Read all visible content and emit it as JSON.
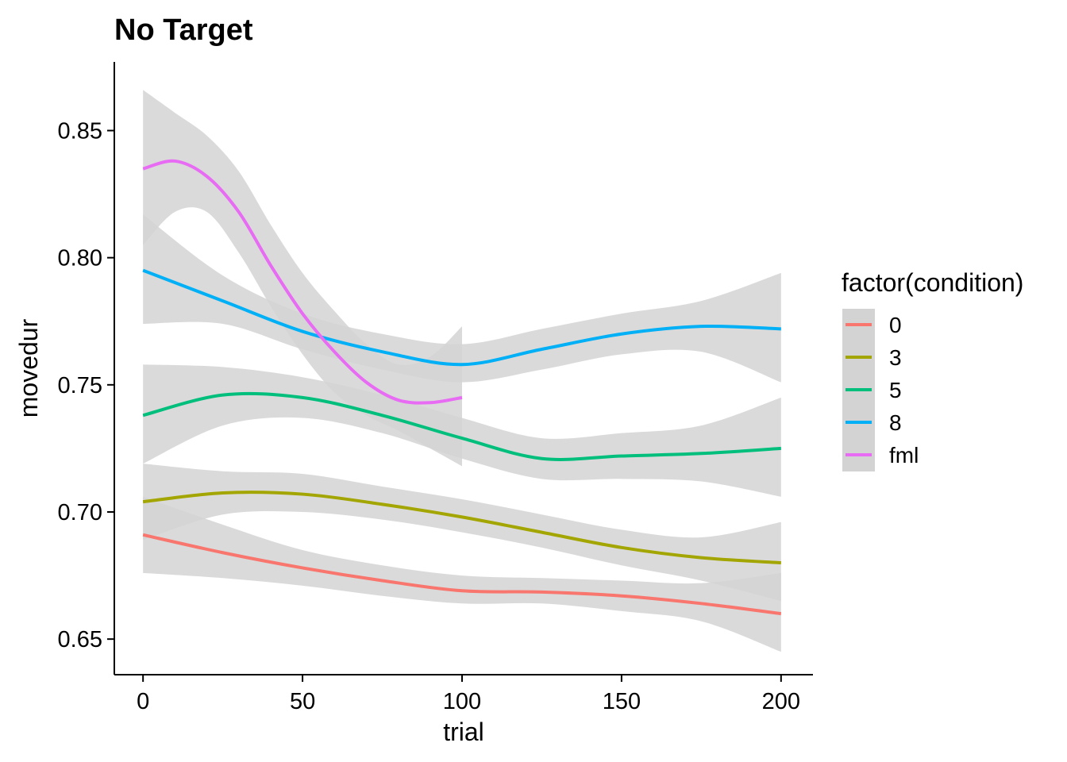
{
  "chart_data": {
    "type": "line",
    "title": "No Target",
    "xlabel": "trial",
    "ylabel": "movedur",
    "xlim": [
      -9,
      210
    ],
    "ylim": [
      0.636,
      0.877
    ],
    "x_ticks": [
      0,
      50,
      100,
      150,
      200
    ],
    "x_tick_labels": [
      "0",
      "50",
      "100",
      "150",
      "200"
    ],
    "y_ticks": [
      0.65,
      0.7,
      0.75,
      0.8,
      0.85
    ],
    "y_tick_labels": [
      "0.65",
      "0.70",
      "0.75",
      "0.80",
      "0.85"
    ],
    "grid": false,
    "legend": {
      "title": "factor(condition)",
      "position": "right"
    },
    "confidence_band_color": "#d3d3d3",
    "series": [
      {
        "name": "0",
        "color": "#F8766D",
        "x": [
          0,
          25,
          50,
          75,
          100,
          125,
          150,
          175,
          200
        ],
        "y": [
          0.691,
          0.684,
          0.678,
          0.673,
          0.669,
          0.6685,
          0.667,
          0.664,
          0.66
        ],
        "lower": [
          0.676,
          0.674,
          0.671,
          0.667,
          0.664,
          0.664,
          0.661,
          0.657,
          0.645
        ],
        "upper": [
          0.706,
          0.695,
          0.685,
          0.679,
          0.675,
          0.674,
          0.673,
          0.672,
          0.676
        ]
      },
      {
        "name": "3",
        "color": "#A3A500",
        "x": [
          0,
          25,
          50,
          75,
          100,
          125,
          150,
          175,
          200
        ],
        "y": [
          0.704,
          0.7075,
          0.707,
          0.703,
          0.698,
          0.692,
          0.686,
          0.682,
          0.68
        ],
        "lower": [
          0.689,
          0.699,
          0.7,
          0.697,
          0.692,
          0.686,
          0.679,
          0.673,
          0.665
        ],
        "upper": [
          0.719,
          0.716,
          0.715,
          0.71,
          0.705,
          0.699,
          0.693,
          0.69,
          0.696
        ]
      },
      {
        "name": "5",
        "color": "#00BF7D",
        "x": [
          0,
          25,
          50,
          75,
          100,
          125,
          150,
          175,
          200
        ],
        "y": [
          0.738,
          0.746,
          0.745,
          0.738,
          0.729,
          0.721,
          0.722,
          0.723,
          0.725
        ],
        "lower": [
          0.719,
          0.734,
          0.737,
          0.731,
          0.721,
          0.713,
          0.713,
          0.712,
          0.706
        ],
        "upper": [
          0.758,
          0.757,
          0.753,
          0.746,
          0.737,
          0.729,
          0.731,
          0.734,
          0.745
        ]
      },
      {
        "name": "8",
        "color": "#00B0F6",
        "x": [
          0,
          25,
          50,
          75,
          100,
          125,
          150,
          175,
          200
        ],
        "y": [
          0.795,
          0.783,
          0.771,
          0.763,
          0.758,
          0.764,
          0.77,
          0.773,
          0.772
        ],
        "lower": [
          0.774,
          0.774,
          0.764,
          0.756,
          0.751,
          0.756,
          0.762,
          0.763,
          0.751
        ],
        "upper": [
          0.817,
          0.793,
          0.778,
          0.77,
          0.766,
          0.772,
          0.778,
          0.783,
          0.794
        ]
      },
      {
        "name": "fml",
        "color": "#E76BF3",
        "x": [
          0,
          10,
          20,
          30,
          40,
          50,
          60,
          70,
          80,
          90,
          100
        ],
        "y": [
          0.835,
          0.838,
          0.832,
          0.818,
          0.797,
          0.778,
          0.763,
          0.751,
          0.744,
          0.743,
          0.745
        ],
        "lower": [
          0.805,
          0.818,
          0.818,
          0.802,
          0.781,
          0.762,
          0.747,
          0.738,
          0.732,
          0.725,
          0.718
        ],
        "upper": [
          0.866,
          0.857,
          0.848,
          0.834,
          0.813,
          0.794,
          0.779,
          0.766,
          0.758,
          0.761,
          0.773
        ]
      }
    ]
  }
}
